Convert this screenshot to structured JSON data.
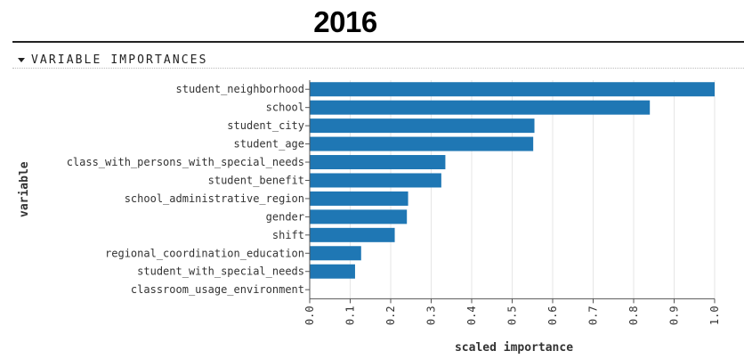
{
  "page": {
    "title": "2016"
  },
  "section": {
    "label": "VARIABLE IMPORTANCES",
    "toggle_icon": "caret-down-icon"
  },
  "chart_data": {
    "type": "bar",
    "orientation": "horizontal",
    "xlabel": "scaled importance",
    "ylabel": "variable",
    "xlim": [
      0,
      1
    ],
    "xticks": [
      "0.0",
      "0.1",
      "0.2",
      "0.3",
      "0.4",
      "0.5",
      "0.6",
      "0.7",
      "0.8",
      "0.9",
      "1.0"
    ],
    "grid": true,
    "bar_color": "#1f77b4",
    "categories": [
      "student_neighborhood",
      "school",
      "student_city",
      "student_age",
      "class_with_persons_with_special_needs",
      "student_benefit",
      "school_administrative_region",
      "gender",
      "shift",
      "regional_coordination_education",
      "student_with_special_needs",
      "classroom_usage_environment"
    ],
    "values": [
      1.0,
      0.84,
      0.555,
      0.552,
      0.335,
      0.325,
      0.243,
      0.24,
      0.21,
      0.127,
      0.112,
      0.0
    ]
  }
}
